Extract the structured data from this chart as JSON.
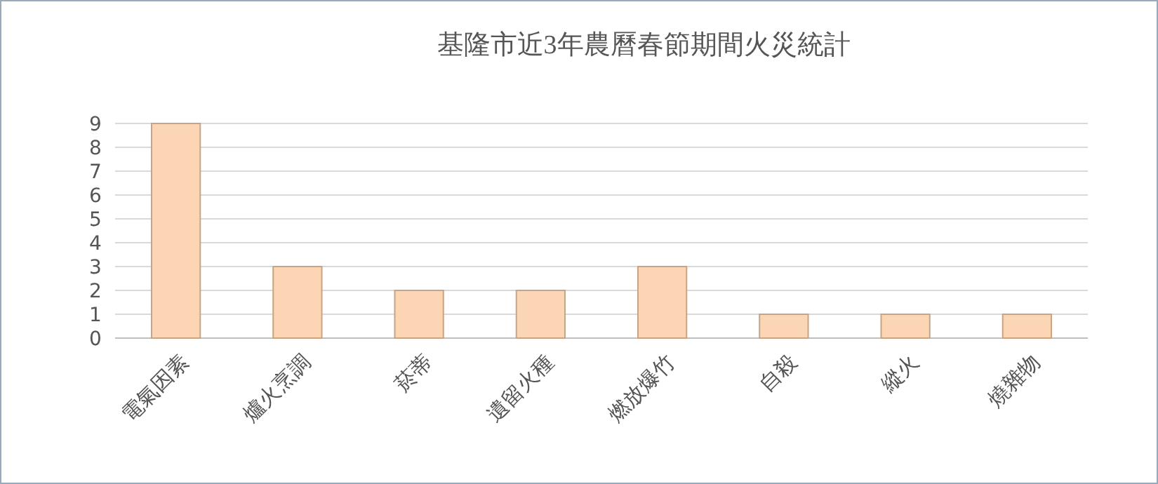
{
  "chart_data": {
    "type": "bar",
    "title": "基隆市近3年農曆春節期間火災統計",
    "categories": [
      "電氣因素",
      "爐火烹調",
      "菸蒂",
      "遺留火種",
      "燃放爆竹",
      "自殺",
      "縱火",
      "燒雜物"
    ],
    "values": [
      9,
      3,
      2,
      2,
      3,
      1,
      1,
      1
    ],
    "color": "#fcd5b4",
    "ylim": [
      0,
      9
    ],
    "yticks": [
      0,
      1,
      2,
      3,
      4,
      5,
      6,
      7,
      8,
      9
    ],
    "grid": "y"
  }
}
